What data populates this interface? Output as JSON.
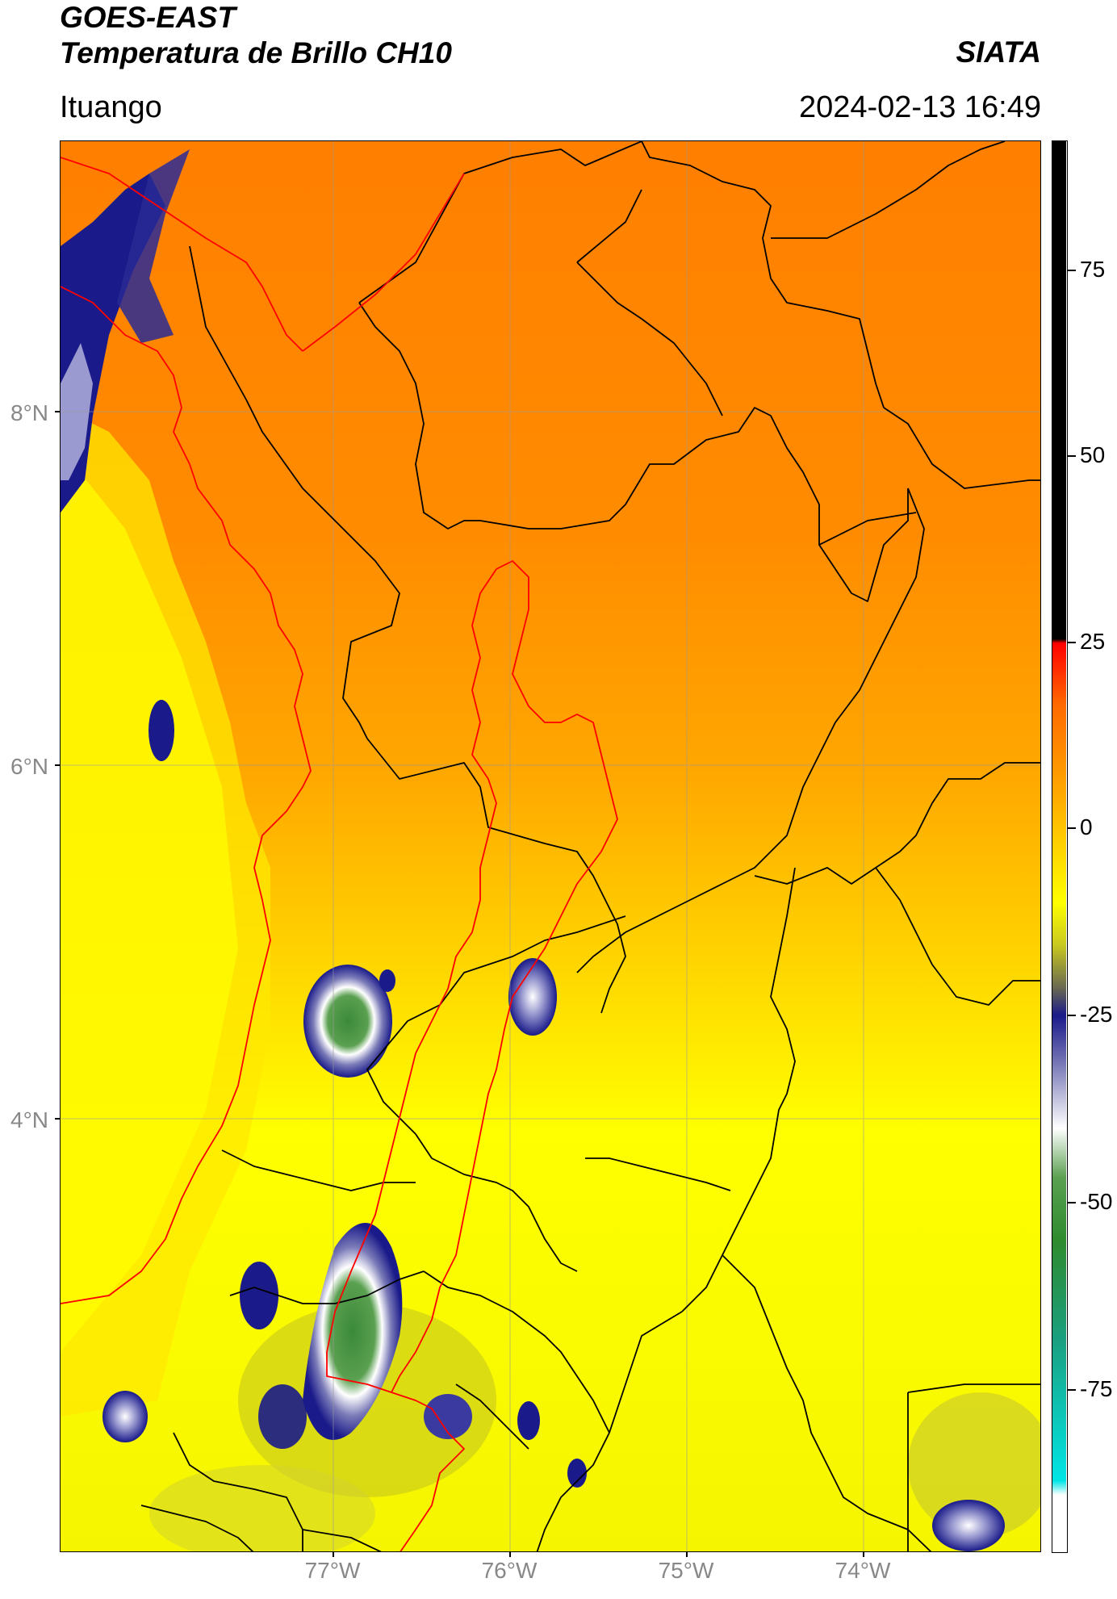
{
  "header": {
    "title_line1": "GOES-EAST",
    "title_line2": "Temperatura de Brillo CH10",
    "brand": "SIATA",
    "location": "Ituango",
    "datetime": "2024-02-13 16:49"
  },
  "axes": {
    "latitude_labels": [
      "8°N",
      "6°N",
      "4°N"
    ],
    "longitude_labels": [
      "77°W",
      "76°W",
      "75°W",
      "74°W"
    ]
  },
  "colorbar": {
    "tick_labels": [
      "75",
      "50",
      "25",
      "0",
      "-25",
      "-50",
      "-75"
    ],
    "ticks": [
      75,
      50,
      25,
      0,
      -25,
      -50,
      -75
    ],
    "range": [
      -100,
      90
    ],
    "colors": {
      "hot": "#000000",
      "red": "#ff1a00",
      "orange": "#ff7a00",
      "yellow": "#ffff00",
      "olive": "#8a8a3a",
      "navy": "#1a1a8a",
      "white": "#ffffff",
      "green": "#2e8b2e",
      "cyan": "#00e5e5"
    }
  },
  "map": {
    "border_colors": {
      "admin": "#000000",
      "national_basin": "#ff0000"
    }
  }
}
